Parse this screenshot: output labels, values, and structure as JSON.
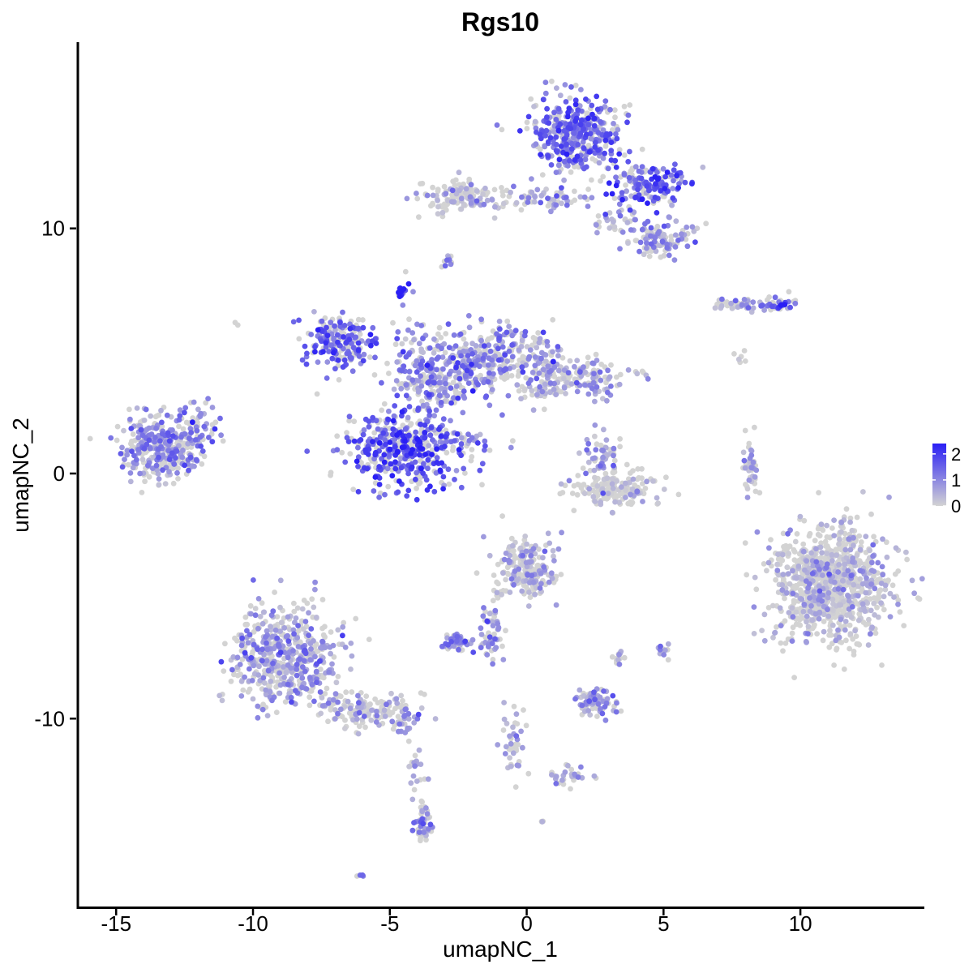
{
  "chart_data": {
    "type": "scatter",
    "title": "Rgs10",
    "xlabel": "umapNC_1",
    "ylabel": "umapNC_2",
    "xlim": [
      -16.4,
      14.5
    ],
    "ylim": [
      -17.7,
      17.6
    ],
    "x_ticks": [
      -15,
      -10,
      -5,
      0,
      5,
      10
    ],
    "y_ticks": [
      -10,
      0,
      10
    ],
    "x_tick_labels": [
      "-15",
      "-10",
      "-5",
      "0",
      "5",
      "10"
    ],
    "y_tick_labels": [
      "-10",
      "0",
      "10"
    ],
    "grid": false,
    "legend_position": "right",
    "color_scale": {
      "low_color": "#d3d3d3",
      "high_color": "#2a1ff5",
      "min": 0,
      "max": 2.4,
      "breaks": [
        0,
        1,
        2
      ],
      "break_labels": [
        "0",
        "1",
        "2"
      ]
    },
    "clusters": [
      {
        "center": [
          1.8,
          13.9
        ],
        "spread": [
          1.1,
          1.0
        ],
        "n": 420,
        "expr": 1.3
      },
      {
        "center": [
          4.5,
          11.8
        ],
        "spread": [
          1.0,
          0.5
        ],
        "n": 160,
        "expr": 1.5
      },
      {
        "center": [
          4.8,
          9.5
        ],
        "spread": [
          0.8,
          0.5
        ],
        "n": 110,
        "expr": 0.7
      },
      {
        "center": [
          -2.5,
          11.3
        ],
        "spread": [
          0.9,
          0.45
        ],
        "n": 120,
        "expr": 0.2
      },
      {
        "center": [
          0.5,
          11.2
        ],
        "spread": [
          1.3,
          0.35
        ],
        "n": 70,
        "expr": 0.7
      },
      {
        "center": [
          3.2,
          10.3
        ],
        "spread": [
          0.6,
          0.3
        ],
        "n": 30,
        "expr": 0.6
      },
      {
        "center": [
          -2.9,
          8.7
        ],
        "spread": [
          0.15,
          0.2
        ],
        "n": 12,
        "expr": 0.9
      },
      {
        "center": [
          -6.8,
          5.3
        ],
        "spread": [
          0.9,
          0.7
        ],
        "n": 200,
        "expr": 1.4
      },
      {
        "center": [
          -4.5,
          1.0
        ],
        "spread": [
          1.4,
          1.0
        ],
        "n": 420,
        "expr": 1.7
      },
      {
        "center": [
          -3.2,
          4.0
        ],
        "spread": [
          1.2,
          1.1
        ],
        "n": 260,
        "expr": 1.0
      },
      {
        "center": [
          -1.0,
          4.8
        ],
        "spread": [
          1.3,
          0.9
        ],
        "n": 260,
        "expr": 0.8
      },
      {
        "center": [
          1.6,
          3.9
        ],
        "spread": [
          1.4,
          0.6
        ],
        "n": 200,
        "expr": 0.5
      },
      {
        "center": [
          -4.6,
          7.4
        ],
        "spread": [
          0.15,
          0.2
        ],
        "n": 18,
        "expr": 2.2
      },
      {
        "center": [
          -4.2,
          4.5
        ],
        "spread": [
          0.4,
          1.8
        ],
        "n": 40,
        "expr": 0.8
      },
      {
        "center": [
          -2.3,
          1.3
        ],
        "spread": [
          0.9,
          0.35
        ],
        "n": 35,
        "expr": 1.1
      },
      {
        "center": [
          -13.4,
          1.1
        ],
        "spread": [
          1.0,
          0.9
        ],
        "n": 330,
        "expr": 0.9
      },
      {
        "center": [
          -11.9,
          1.8
        ],
        "spread": [
          0.5,
          0.7
        ],
        "n": 50,
        "expr": 0.9
      },
      {
        "center": [
          3.2,
          -0.6
        ],
        "spread": [
          1.0,
          0.45
        ],
        "n": 170,
        "expr": 0.15
      },
      {
        "center": [
          2.8,
          0.7
        ],
        "spread": [
          0.4,
          0.6
        ],
        "n": 60,
        "expr": 0.7
      },
      {
        "center": [
          8.2,
          0.1
        ],
        "spread": [
          0.2,
          0.9
        ],
        "n": 45,
        "expr": 0.5
      },
      {
        "center": [
          11.1,
          -4.5
        ],
        "spread": [
          1.4,
          1.6
        ],
        "n": 950,
        "expr": 0.12
      },
      {
        "center": [
          -8.8,
          -7.5
        ],
        "spread": [
          1.3,
          1.4
        ],
        "n": 540,
        "expr": 0.6
      },
      {
        "center": [
          -5.9,
          -9.7
        ],
        "spread": [
          1.0,
          0.45
        ],
        "n": 120,
        "expr": 0.3
      },
      {
        "center": [
          -4.4,
          -10.2
        ],
        "spread": [
          0.35,
          0.5
        ],
        "n": 30,
        "expr": 0.7
      },
      {
        "center": [
          -3.8,
          -14.3
        ],
        "spread": [
          0.2,
          0.5
        ],
        "n": 45,
        "expr": 1.0
      },
      {
        "center": [
          -4.0,
          -12.2
        ],
        "spread": [
          0.25,
          1.0
        ],
        "n": 20,
        "expr": 0.3
      },
      {
        "center": [
          -0.1,
          -3.9
        ],
        "spread": [
          0.8,
          0.8
        ],
        "n": 210,
        "expr": 0.35
      },
      {
        "center": [
          -1.3,
          -6.5
        ],
        "spread": [
          0.3,
          0.8
        ],
        "n": 50,
        "expr": 0.8
      },
      {
        "center": [
          -2.6,
          -6.9
        ],
        "spread": [
          0.3,
          0.25
        ],
        "n": 55,
        "expr": 0.9
      },
      {
        "center": [
          2.5,
          -9.4
        ],
        "spread": [
          0.5,
          0.35
        ],
        "n": 80,
        "expr": 0.7
      },
      {
        "center": [
          3.4,
          -7.6
        ],
        "spread": [
          0.15,
          0.2
        ],
        "n": 14,
        "expr": 0.3
      },
      {
        "center": [
          5.0,
          -7.2
        ],
        "spread": [
          0.2,
          0.2
        ],
        "n": 14,
        "expr": 0.7
      },
      {
        "center": [
          -0.5,
          -10.7
        ],
        "spread": [
          0.3,
          1.0
        ],
        "n": 40,
        "expr": 0.5
      },
      {
        "center": [
          1.5,
          -12.3
        ],
        "spread": [
          0.9,
          0.3
        ],
        "n": 30,
        "expr": 0.6
      },
      {
        "center": [
          7.8,
          6.9
        ],
        "spread": [
          0.6,
          0.2
        ],
        "n": 45,
        "expr": 0.8
      },
      {
        "center": [
          9.2,
          6.9
        ],
        "spread": [
          0.35,
          0.25
        ],
        "n": 40,
        "expr": 1.3
      },
      {
        "center": [
          7.8,
          4.7
        ],
        "spread": [
          0.15,
          0.2
        ],
        "n": 6,
        "expr": 0.1
      },
      {
        "center": [
          -10.6,
          6.1
        ],
        "spread": [
          0.05,
          0.05
        ],
        "n": 2,
        "expr": 0.1
      },
      {
        "center": [
          -6.1,
          -16.4
        ],
        "spread": [
          0.1,
          0.05
        ],
        "n": 4,
        "expr": 0.9
      },
      {
        "center": [
          0.6,
          -14.2
        ],
        "spread": [
          0.05,
          0.05
        ],
        "n": 3,
        "expr": 0.1
      }
    ]
  }
}
